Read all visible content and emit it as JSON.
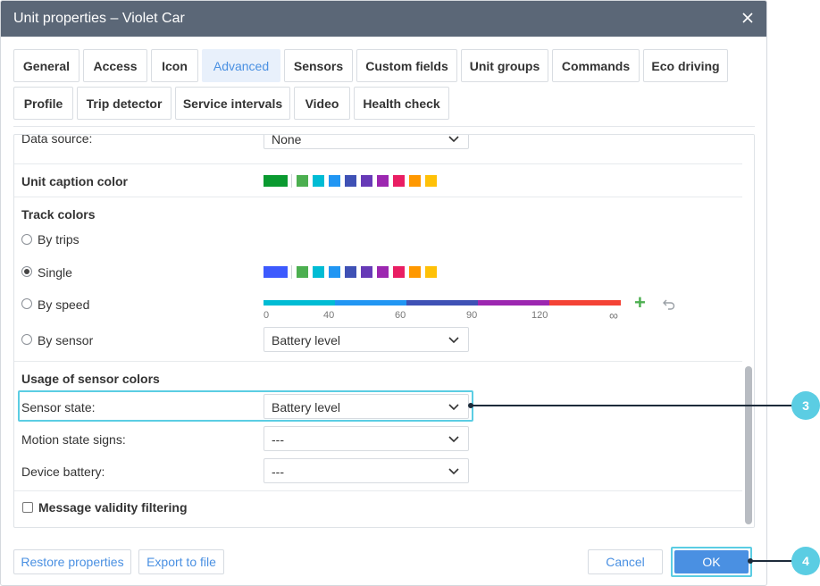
{
  "window": {
    "title": "Unit properties – Violet Car"
  },
  "tabs": [
    {
      "label": "General"
    },
    {
      "label": "Access"
    },
    {
      "label": "Icon"
    },
    {
      "label": "Advanced",
      "active": true
    },
    {
      "label": "Sensors"
    },
    {
      "label": "Custom fields"
    },
    {
      "label": "Unit groups"
    },
    {
      "label": "Commands"
    },
    {
      "label": "Eco driving"
    },
    {
      "label": "Profile"
    },
    {
      "label": "Trip detector"
    },
    {
      "label": "Service intervals"
    },
    {
      "label": "Video"
    },
    {
      "label": "Health check"
    }
  ],
  "data_source": {
    "label": "Data source:",
    "value": "None"
  },
  "caption_color": {
    "label": "Unit caption color",
    "selected": "#0a9a30",
    "palette": [
      "#4caf50",
      "#00bcd4",
      "#2196f3",
      "#3f51b5",
      "#673ab7",
      "#9c27b0",
      "#e91e63",
      "#ff9800",
      "#ffc107"
    ]
  },
  "track_colors": {
    "heading": "Track colors",
    "options": [
      {
        "label": "By trips",
        "checked": false
      },
      {
        "label": "Single",
        "checked": true
      },
      {
        "label": "By speed",
        "checked": false
      },
      {
        "label": "By sensor",
        "checked": false
      }
    ],
    "single_selected": "#3d5afe",
    "single_palette": [
      "#4caf50",
      "#00bcd4",
      "#2196f3",
      "#3f51b5",
      "#673ab7",
      "#9c27b0",
      "#e91e63",
      "#ff9800",
      "#ffc107"
    ],
    "speed_colors": [
      "#00bcd4",
      "#2196f3",
      "#3f51b5",
      "#9c27b0",
      "#f44336"
    ],
    "speed_ticks": [
      "0",
      "40",
      "60",
      "90",
      "120",
      "∞"
    ],
    "sensor_value": "Battery level"
  },
  "sensor_colors": {
    "heading": "Usage of sensor colors",
    "rows": [
      {
        "label": "Sensor state:",
        "value": "Battery level"
      },
      {
        "label": "Motion state signs:",
        "value": "---"
      },
      {
        "label": "Device battery:",
        "value": "---"
      }
    ]
  },
  "validity": {
    "label": "Message validity filtering",
    "checked": false
  },
  "footer": {
    "restore": "Restore properties",
    "export": "Export to file",
    "cancel": "Cancel",
    "ok": "OK"
  },
  "callouts": [
    "3",
    "4"
  ]
}
